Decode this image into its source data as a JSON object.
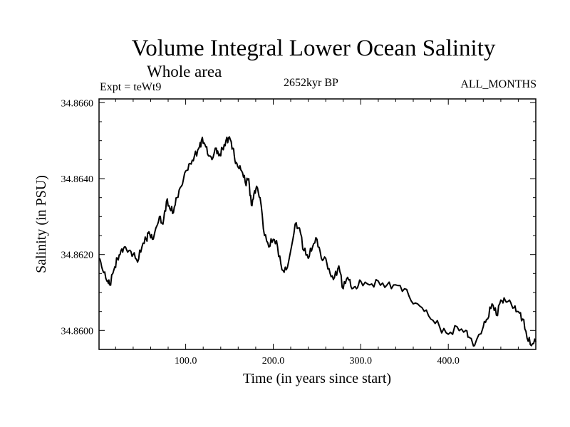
{
  "header": {
    "title": "Volume Integral Lower Ocean Salinity",
    "subtitle": "Whole area",
    "experiment": "Expt = teWt9",
    "period": "2652kyr BP",
    "months": "ALL_MONTHS"
  },
  "chart_data": {
    "type": "line",
    "title": "Volume Integral Lower Ocean Salinity",
    "xlabel": "Time (in years since start)",
    "ylabel": "Salinity (in PSU)",
    "xlim": [
      1,
      500
    ],
    "ylim": [
      34.8595,
      34.8661
    ],
    "x_ticks": [
      100,
      200,
      300,
      400
    ],
    "x_tick_labels": [
      "100.0",
      "200.0",
      "300.0",
      "400.0"
    ],
    "y_ticks": [
      34.866,
      34.864,
      34.862,
      34.86
    ],
    "y_tick_labels": [
      "34.8660",
      "34.8640",
      "34.8620",
      "34.8600"
    ],
    "grid": false,
    "series": [
      {
        "name": "Salinity",
        "x": [
          1,
          5,
          10,
          13,
          18,
          22,
          26,
          30,
          35,
          40,
          45,
          50,
          55,
          58,
          62,
          66,
          70,
          74,
          78,
          82,
          86,
          90,
          95,
          100,
          105,
          110,
          115,
          118,
          122,
          126,
          130,
          135,
          138,
          142,
          146,
          150,
          154,
          157,
          160,
          164,
          168,
          172,
          175,
          178,
          181,
          185,
          190,
          195,
          200,
          205,
          210,
          215,
          220,
          225,
          230,
          235,
          240,
          245,
          250,
          255,
          260,
          265,
          270,
          275,
          280,
          285,
          290,
          295,
          300,
          310,
          320,
          330,
          340,
          350,
          360,
          370,
          380,
          390,
          400,
          410,
          420,
          425,
          430,
          440,
          445,
          450,
          455,
          460,
          465,
          470,
          475,
          480,
          485,
          490,
          495,
          500
        ],
        "values": [
          34.8619,
          34.8616,
          34.8613,
          34.8612,
          34.8616,
          34.8619,
          34.8621,
          34.8622,
          34.8621,
          34.862,
          34.8618,
          34.8622,
          34.8624,
          34.8626,
          34.8624,
          34.8627,
          34.863,
          34.8628,
          34.8634,
          34.8632,
          34.8631,
          34.8635,
          34.8638,
          34.8642,
          34.8644,
          34.8646,
          34.8648,
          34.865,
          34.8649,
          34.8646,
          34.8645,
          34.8648,
          34.8646,
          34.8648,
          34.865,
          34.8651,
          34.8648,
          34.8644,
          34.8643,
          34.8642,
          34.8639,
          34.864,
          34.8633,
          34.8636,
          34.8638,
          34.8635,
          34.8625,
          34.8622,
          34.8624,
          34.8622,
          34.8616,
          34.8616,
          34.8621,
          34.8628,
          34.8627,
          34.8621,
          34.8619,
          34.8622,
          34.8624,
          34.8619,
          34.8619,
          34.8615,
          34.8614,
          34.8617,
          34.8611,
          34.8614,
          34.8611,
          34.8611,
          34.8613,
          34.8612,
          34.8613,
          34.8612,
          34.8612,
          34.8611,
          34.8607,
          34.8606,
          34.8603,
          34.8601,
          34.8599,
          34.8601,
          34.86,
          34.8598,
          34.8596,
          34.8601,
          34.8603,
          34.8607,
          34.8604,
          34.8608,
          34.8608,
          34.8608,
          34.8606,
          34.8605,
          34.8603,
          34.8598,
          34.8596,
          34.8597
        ]
      }
    ]
  }
}
